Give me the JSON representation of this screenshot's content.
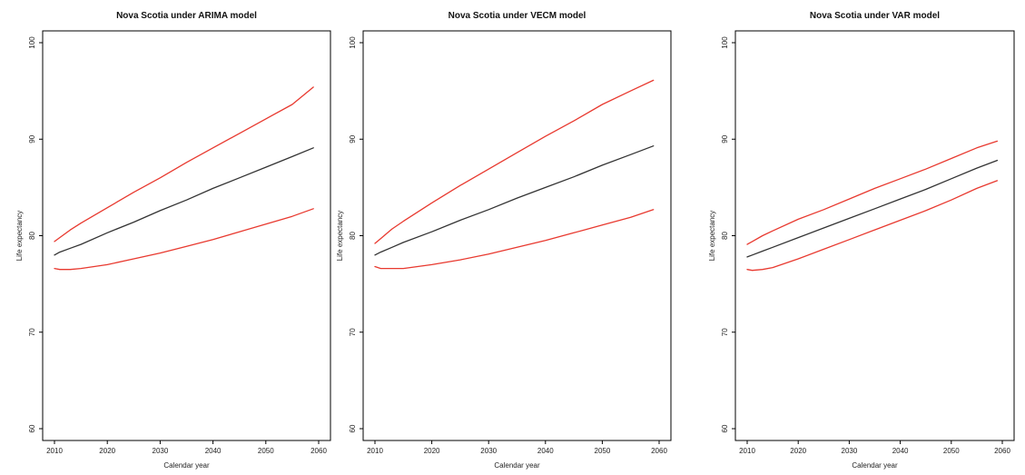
{
  "colors": {
    "background": "#ffffff",
    "axis": "#000000",
    "central_line": "#333333",
    "bound_line": "#e8392f"
  },
  "chart_data": [
    {
      "type": "line",
      "title": "Nova Scotia under ARIMA model",
      "xlabel": "Calendar year",
      "ylabel": "Life expectancy",
      "xlim": [
        2010,
        2060
      ],
      "ylim": [
        60,
        100
      ],
      "x_ticks": [
        2010,
        2020,
        2030,
        2040,
        2050,
        2060
      ],
      "y_ticks": [
        60,
        70,
        80,
        90,
        100
      ],
      "grid": false,
      "x": [
        2010,
        2011,
        2013,
        2015,
        2020,
        2025,
        2030,
        2035,
        2040,
        2045,
        2050,
        2055,
        2059
      ],
      "series": [
        {
          "role": "upper",
          "color": "#e8392f",
          "values": [
            79.4,
            79.8,
            80.6,
            81.3,
            82.9,
            84.5,
            86.0,
            87.6,
            89.1,
            90.6,
            92.1,
            93.6,
            95.4
          ]
        },
        {
          "role": "central",
          "color": "#333333",
          "values": [
            78.0,
            78.3,
            78.7,
            79.1,
            80.3,
            81.4,
            82.6,
            83.7,
            84.9,
            86.0,
            87.1,
            88.2,
            89.1
          ]
        },
        {
          "role": "lower",
          "color": "#e8392f",
          "values": [
            76.6,
            76.5,
            76.5,
            76.6,
            77.0,
            77.6,
            78.2,
            78.9,
            79.6,
            80.4,
            81.2,
            82.0,
            82.8
          ]
        }
      ]
    },
    {
      "type": "line",
      "title": "Nova Scotia under VECM model",
      "xlabel": "Calendar year",
      "ylabel": "Life expectancy",
      "xlim": [
        2010,
        2060
      ],
      "ylim": [
        60,
        100
      ],
      "x_ticks": [
        2010,
        2020,
        2030,
        2040,
        2050,
        2060
      ],
      "y_ticks": [
        60,
        70,
        80,
        90,
        100
      ],
      "grid": false,
      "x": [
        2010,
        2011,
        2013,
        2015,
        2020,
        2025,
        2030,
        2035,
        2040,
        2045,
        2050,
        2055,
        2059
      ],
      "series": [
        {
          "role": "upper",
          "color": "#e8392f",
          "values": [
            79.2,
            79.7,
            80.7,
            81.5,
            83.4,
            85.2,
            86.9,
            88.6,
            90.3,
            91.9,
            93.6,
            95.0,
            96.1
          ]
        },
        {
          "role": "central",
          "color": "#333333",
          "values": [
            78.0,
            78.3,
            78.8,
            79.3,
            80.4,
            81.6,
            82.7,
            83.9,
            85.0,
            86.1,
            87.3,
            88.4,
            89.3
          ]
        },
        {
          "role": "lower",
          "color": "#e8392f",
          "values": [
            76.8,
            76.6,
            76.6,
            76.6,
            77.0,
            77.5,
            78.1,
            78.8,
            79.5,
            80.3,
            81.1,
            81.9,
            82.7
          ]
        }
      ]
    },
    {
      "type": "line",
      "title": "Nova Scotia under VAR model",
      "xlabel": "Calendar year",
      "ylabel": "Life expectancy",
      "xlim": [
        2010,
        2060
      ],
      "ylim": [
        60,
        100
      ],
      "x_ticks": [
        2010,
        2020,
        2030,
        2040,
        2050,
        2060
      ],
      "y_ticks": [
        60,
        70,
        80,
        90,
        100
      ],
      "grid": false,
      "x": [
        2010,
        2011,
        2013,
        2015,
        2020,
        2025,
        2030,
        2035,
        2040,
        2045,
        2050,
        2055,
        2059
      ],
      "series": [
        {
          "role": "upper",
          "color": "#e8392f",
          "values": [
            79.1,
            79.4,
            80.0,
            80.5,
            81.7,
            82.7,
            83.8,
            84.9,
            85.9,
            86.9,
            88.0,
            89.1,
            89.8
          ]
        },
        {
          "role": "central",
          "color": "#333333",
          "values": [
            77.8,
            78.0,
            78.4,
            78.8,
            79.8,
            80.8,
            81.8,
            82.8,
            83.8,
            84.8,
            85.9,
            87.0,
            87.8
          ]
        },
        {
          "role": "lower",
          "color": "#e8392f",
          "values": [
            76.5,
            76.4,
            76.5,
            76.7,
            77.6,
            78.6,
            79.6,
            80.6,
            81.6,
            82.6,
            83.7,
            84.9,
            85.7
          ]
        }
      ]
    }
  ]
}
